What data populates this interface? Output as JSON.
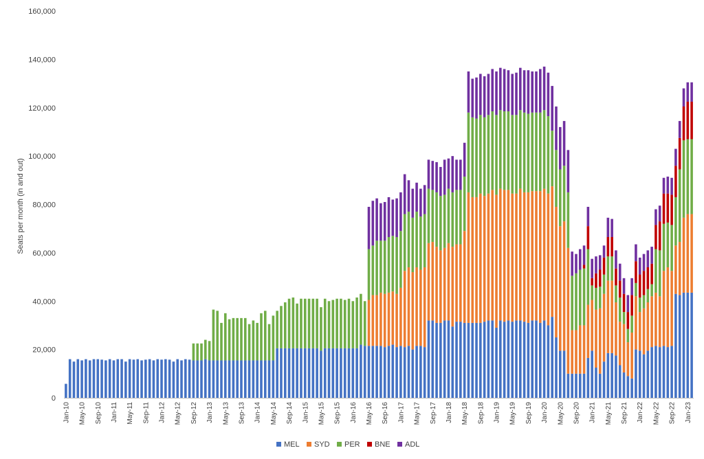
{
  "chart_data": {
    "type": "bar",
    "stacked": true,
    "title": "",
    "xlabel": "",
    "ylabel": "Seats per month (in and out)",
    "ylim": [
      0,
      160000
    ],
    "yticks": [
      0,
      20000,
      40000,
      60000,
      80000,
      100000,
      120000,
      140000,
      160000
    ],
    "ytick_labels": [
      "0",
      "20,000",
      "40,000",
      "60,000",
      "80,000",
      "100,000",
      "120,000",
      "140,000",
      "160,000"
    ],
    "grid": false,
    "legend_position": "bottom",
    "colors": {
      "MEL": "#4472C4",
      "SYD": "#ED7D31",
      "PER": "#70AD47",
      "BNE": "#C00000",
      "ADL": "#7030A0"
    },
    "categories": [
      "Jan-10",
      "Feb-10",
      "Mar-10",
      "Apr-10",
      "May-10",
      "Jun-10",
      "Jul-10",
      "Aug-10",
      "Sep-10",
      "Oct-10",
      "Nov-10",
      "Dec-10",
      "Jan-11",
      "Feb-11",
      "Mar-11",
      "Apr-11",
      "May-11",
      "Jun-11",
      "Jul-11",
      "Aug-11",
      "Sep-11",
      "Oct-11",
      "Nov-11",
      "Dec-11",
      "Jan-12",
      "Feb-12",
      "Mar-12",
      "Apr-12",
      "May-12",
      "Jun-12",
      "Jul-12",
      "Aug-12",
      "Sep-12",
      "Oct-12",
      "Nov-12",
      "Dec-12",
      "Jan-13",
      "Feb-13",
      "Mar-13",
      "Apr-13",
      "May-13",
      "Jun-13",
      "Jul-13",
      "Aug-13",
      "Sep-13",
      "Oct-13",
      "Nov-13",
      "Dec-13",
      "Jan-14",
      "Feb-14",
      "Mar-14",
      "Apr-14",
      "May-14",
      "Jun-14",
      "Jul-14",
      "Aug-14",
      "Sep-14",
      "Oct-14",
      "Nov-14",
      "Dec-14",
      "Jan-15",
      "Feb-15",
      "Mar-15",
      "Apr-15",
      "May-15",
      "Jun-15",
      "Jul-15",
      "Aug-15",
      "Sep-15",
      "Oct-15",
      "Nov-15",
      "Dec-15",
      "Jan-16",
      "Feb-16",
      "Mar-16",
      "Apr-16",
      "May-16",
      "Jun-16",
      "Jul-16",
      "Aug-16",
      "Sep-16",
      "Oct-16",
      "Nov-16",
      "Dec-16",
      "Jan-17",
      "Feb-17",
      "Mar-17",
      "Apr-17",
      "May-17",
      "Jun-17",
      "Jul-17",
      "Aug-17",
      "Sep-17",
      "Oct-17",
      "Nov-17",
      "Dec-17",
      "Jan-18",
      "Feb-18",
      "Mar-18",
      "Apr-18",
      "May-18",
      "Jun-18",
      "Jul-18",
      "Aug-18",
      "Sep-18",
      "Oct-18",
      "Nov-18",
      "Dec-18",
      "Jan-19",
      "Feb-19",
      "Mar-19",
      "Apr-19",
      "May-19",
      "Jun-19",
      "Jul-19",
      "Aug-19",
      "Sep-19",
      "Oct-19",
      "Nov-19",
      "Dec-19",
      "Jan-20",
      "Feb-20",
      "Mar-20",
      "Apr-20",
      "May-20",
      "Jun-20",
      "Jul-20",
      "Aug-20",
      "Sep-20",
      "Oct-20",
      "Nov-20",
      "Dec-20",
      "Jan-21",
      "Feb-21",
      "Mar-21",
      "Apr-21",
      "May-21",
      "Jun-21",
      "Jul-21",
      "Aug-21",
      "Sep-21",
      "Oct-21",
      "Nov-21",
      "Dec-21",
      "Jan-22",
      "Feb-22",
      "Mar-22",
      "Apr-22",
      "May-22",
      "Jun-22",
      "Jul-22",
      "Aug-22",
      "Sep-22",
      "Oct-22",
      "Nov-22",
      "Dec-22",
      "Jan-23",
      "Feb-23"
    ],
    "xtick_labels_every": 4,
    "series": [
      {
        "name": "MEL",
        "values": [
          5800,
          16000,
          15000,
          16000,
          15500,
          16000,
          15500,
          16000,
          16000,
          15800,
          15500,
          16000,
          15500,
          16000,
          16000,
          15000,
          16000,
          15800,
          16000,
          15500,
          15800,
          16000,
          15500,
          16000,
          15800,
          16000,
          15800,
          15000,
          16000,
          15500,
          16000,
          15800,
          15500,
          15500,
          15500,
          16000,
          15500,
          15500,
          15500,
          15500,
          15500,
          15500,
          15500,
          15500,
          15500,
          15500,
          15500,
          15500,
          15500,
          15500,
          15500,
          15500,
          15500,
          20500,
          20500,
          20500,
          20500,
          20500,
          20500,
          20500,
          20500,
          20500,
          20500,
          20500,
          19500,
          20500,
          20500,
          20500,
          20500,
          20500,
          20500,
          20500,
          20500,
          20500,
          22000,
          21500,
          21500,
          21500,
          21500,
          21500,
          21000,
          21500,
          22000,
          21000,
          21500,
          21000,
          21500,
          20000,
          21500,
          21500,
          21000,
          32000,
          32000,
          31000,
          31000,
          32000,
          32000,
          29500,
          31500,
          31500,
          31000,
          31000,
          31000,
          31000,
          31000,
          31500,
          32000,
          32000,
          29000,
          32000,
          31500,
          32000,
          31500,
          32000,
          32000,
          31500,
          31000,
          32000,
          32000,
          31000,
          32000,
          30000,
          33500,
          25000,
          19500,
          19500,
          10000,
          10000,
          10000,
          10000,
          10000,
          16500,
          19500,
          12500,
          10000,
          15000,
          18500,
          18500,
          17500,
          13500,
          10500,
          9000,
          8000,
          20000,
          19500,
          18000,
          19500,
          21000,
          21500,
          21000,
          21500,
          21000,
          21500,
          43000,
          42500,
          43500,
          43500,
          43500
        ]
      },
      {
        "name": "SYD",
        "values": [
          0,
          0,
          0,
          0,
          0,
          0,
          0,
          0,
          0,
          0,
          0,
          0,
          0,
          0,
          0,
          0,
          0,
          0,
          0,
          0,
          0,
          0,
          0,
          0,
          0,
          0,
          0,
          0,
          0,
          0,
          0,
          0,
          0,
          0,
          0,
          0,
          0,
          0,
          0,
          0,
          0,
          0,
          0,
          0,
          0,
          0,
          0,
          0,
          0,
          0,
          0,
          0,
          0,
          0,
          0,
          0,
          0,
          0,
          0,
          0,
          0,
          0,
          0,
          0,
          0,
          0,
          0,
          0,
          0,
          0,
          0,
          0,
          0,
          0,
          0,
          0,
          19000,
          21000,
          21000,
          22000,
          22000,
          22000,
          22000,
          22000,
          24000,
          31500,
          32500,
          32000,
          32500,
          31500,
          33000,
          32000,
          32500,
          31500,
          30000,
          30000,
          32000,
          33000,
          32000,
          32000,
          38000,
          54000,
          52000,
          52000,
          53500,
          52000,
          52500,
          54000,
          55000,
          54500,
          54500,
          54000,
          53000,
          52500,
          54500,
          53500,
          54000,
          53500,
          53500,
          54500,
          54500,
          54500,
          54000,
          54000,
          51500,
          53500,
          52000,
          18000,
          18000,
          20000,
          20000,
          22000,
          21000,
          24000,
          27000,
          28000,
          30000,
          30000,
          22000,
          18000,
          20000,
          14000,
          19000,
          22000,
          16000,
          19000,
          20000,
          21000,
          22000,
          21000,
          31000,
          33000,
          31000,
          20000,
          22000,
          31000,
          32500,
          32500
        ]
      },
      {
        "name": "PER",
        "values": [
          0,
          0,
          0,
          0,
          0,
          0,
          0,
          0,
          0,
          0,
          0,
          0,
          0,
          0,
          0,
          0,
          0,
          0,
          0,
          0,
          0,
          0,
          0,
          0,
          0,
          0,
          0,
          0,
          0,
          0,
          0,
          0,
          7000,
          7000,
          7000,
          8000,
          8000,
          21000,
          20500,
          15500,
          19500,
          17000,
          17500,
          17500,
          17500,
          17500,
          15000,
          16500,
          15500,
          19500,
          20500,
          15000,
          18500,
          15500,
          17500,
          19000,
          20500,
          21000,
          18500,
          20500,
          20500,
          20500,
          20500,
          20500,
          18000,
          20500,
          19500,
          20000,
          20500,
          20500,
          20000,
          20500,
          19500,
          21000,
          21000,
          18500,
          21000,
          20500,
          22500,
          21500,
          22000,
          23000,
          23000,
          23500,
          23500,
          23500,
          23000,
          22500,
          23000,
          22000,
          22000,
          22500,
          21500,
          22500,
          22500,
          22000,
          22500,
          22500,
          22500,
          22500,
          22500,
          33000,
          33000,
          32500,
          32500,
          32500,
          32500,
          32500,
          33000,
          32500,
          32500,
          32500,
          32500,
          32500,
          32500,
          33000,
          32500,
          32500,
          32500,
          32500,
          32500,
          32000,
          23000,
          23500,
          23500,
          23000,
          23000,
          22500,
          23500,
          23000,
          23500,
          23000,
          6000,
          9000,
          9000,
          8000,
          10000,
          10000,
          7000,
          10000,
          5000,
          5500,
          7000,
          5500,
          6000,
          5500,
          5500,
          5000,
          18000,
          19000,
          19500,
          18500,
          19000,
          20000,
          30000,
          32000,
          31000,
          31000
        ]
      },
      {
        "name": "BNE",
        "values": [
          0,
          0,
          0,
          0,
          0,
          0,
          0,
          0,
          0,
          0,
          0,
          0,
          0,
          0,
          0,
          0,
          0,
          0,
          0,
          0,
          0,
          0,
          0,
          0,
          0,
          0,
          0,
          0,
          0,
          0,
          0,
          0,
          0,
          0,
          0,
          0,
          0,
          0,
          0,
          0,
          0,
          0,
          0,
          0,
          0,
          0,
          0,
          0,
          0,
          0,
          0,
          0,
          0,
          0,
          0,
          0,
          0,
          0,
          0,
          0,
          0,
          0,
          0,
          0,
          0,
          0,
          0,
          0,
          0,
          0,
          0,
          0,
          0,
          0,
          0,
          0,
          0,
          0,
          0,
          0,
          0,
          0,
          0,
          0,
          0,
          0,
          0,
          0,
          0,
          0,
          0,
          0,
          0,
          0,
          0,
          0,
          0,
          0,
          0,
          0,
          0,
          0,
          0,
          0,
          0,
          0,
          0,
          0,
          0,
          0,
          0,
          0,
          0,
          0,
          0,
          0,
          0,
          0,
          0,
          0,
          0,
          0,
          0,
          0,
          0,
          0,
          0,
          0,
          0,
          0,
          1500,
          9500,
          3000,
          6000,
          7000,
          7000,
          8000,
          8000,
          7000,
          7000,
          7500,
          7000,
          8500,
          9000,
          9500,
          10000,
          9000,
          8500,
          10000,
          12000,
          12500,
          12000,
          12500,
          13000,
          13000,
          14000,
          15500,
          15500
        ]
      },
      {
        "name": "ADL",
        "values": [
          0,
          0,
          0,
          0,
          0,
          0,
          0,
          0,
          0,
          0,
          0,
          0,
          0,
          0,
          0,
          0,
          0,
          0,
          0,
          0,
          0,
          0,
          0,
          0,
          0,
          0,
          0,
          0,
          0,
          0,
          0,
          0,
          0,
          0,
          0,
          0,
          0,
          0,
          0,
          0,
          0,
          0,
          0,
          0,
          0,
          0,
          0,
          0,
          0,
          0,
          0,
          0,
          0,
          0,
          0,
          0,
          0,
          0,
          0,
          0,
          0,
          0,
          0,
          0,
          0,
          0,
          0,
          0,
          0,
          0,
          0,
          0,
          0,
          0,
          0,
          0,
          17500,
          18500,
          17500,
          15500,
          16000,
          16500,
          15000,
          16000,
          16000,
          16500,
          13000,
          12000,
          12000,
          11500,
          12000,
          12000,
          12000,
          12500,
          12000,
          14500,
          12500,
          15000,
          12500,
          12500,
          14000,
          17000,
          16000,
          17000,
          17000,
          17000,
          17000,
          17500,
          18000,
          17500,
          17500,
          17000,
          17000,
          17500,
          17500,
          17500,
          18000,
          17000,
          17000,
          18000,
          18000,
          18000,
          18500,
          18000,
          17500,
          18500,
          17500,
          10000,
          8000,
          8500,
          8000,
          8000,
          8000,
          7000,
          6000,
          5000,
          8000,
          7500,
          7500,
          7000,
          6500,
          7000,
          7000,
          7000,
          7000,
          7000,
          7000,
          7000,
          6500,
          6500,
          6500,
          7000,
          7000,
          7000,
          7000,
          7500,
          8000,
          8000
        ]
      }
    ]
  }
}
